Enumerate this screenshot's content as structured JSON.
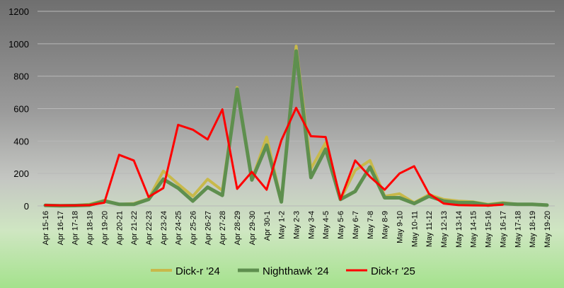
{
  "chart_data": {
    "type": "line",
    "ylim": [
      0,
      1200
    ],
    "yticks": [
      0,
      200,
      400,
      600,
      800,
      1000,
      1200
    ],
    "grid": true,
    "legend_position": "bottom",
    "categories": [
      "Apr 15-16",
      "Apr 16-17",
      "Apr 17-18",
      "Apr 18-19",
      "Apr 19-20",
      "Apr 20-21",
      "Apr 21-22",
      "Apr 22-23",
      "Apr 23-24",
      "Apr 24-25",
      "Apr 25-26",
      "Apr 26-27",
      "Apr 27-28",
      "Apr 28-29",
      "Apr 29-30",
      "Apr 30-1",
      "May 1-2",
      "May 2-3",
      "May 3-4",
      "May 4-5",
      "May 5-6",
      "May 6-7",
      "May 7-8",
      "May 8-9",
      "May 9-10",
      "May 10-11",
      "May 11-12",
      "May 12-13",
      "May 13-14",
      "May 14-15",
      "May 15-16",
      "May 16-17",
      "May 17-18",
      "May 18-19",
      "May 19-20"
    ],
    "series": [
      {
        "name": "Dick-r '24",
        "color": "#c8b94a",
        "width": 4,
        "values": [
          5,
          2,
          3,
          10,
          35,
          10,
          15,
          45,
          215,
          135,
          60,
          165,
          95,
          730,
          160,
          425,
          30,
          985,
          230,
          390,
          40,
          220,
          280,
          60,
          75,
          20,
          70,
          40,
          30,
          25,
          10,
          20,
          10,
          10,
          5
        ]
      },
      {
        "name": "Nighthawk '24",
        "color": "#5e8f4e",
        "width": 5,
        "values": [
          3,
          1,
          2,
          5,
          30,
          10,
          10,
          40,
          165,
          110,
          30,
          115,
          65,
          720,
          160,
          375,
          25,
          955,
          175,
          350,
          40,
          90,
          240,
          50,
          50,
          15,
          60,
          30,
          20,
          20,
          5,
          15,
          10,
          10,
          5
        ]
      },
      {
        "name": "Dick-r '25",
        "color": "#ff0000",
        "width": 3,
        "values": [
          5,
          3,
          3,
          5,
          20,
          315,
          280,
          55,
          110,
          500,
          470,
          410,
          595,
          105,
          210,
          100,
          405,
          605,
          430,
          425,
          40,
          280,
          180,
          100,
          200,
          245,
          75,
          15,
          5,
          3,
          2,
          8,
          null,
          null,
          null
        ]
      }
    ]
  }
}
